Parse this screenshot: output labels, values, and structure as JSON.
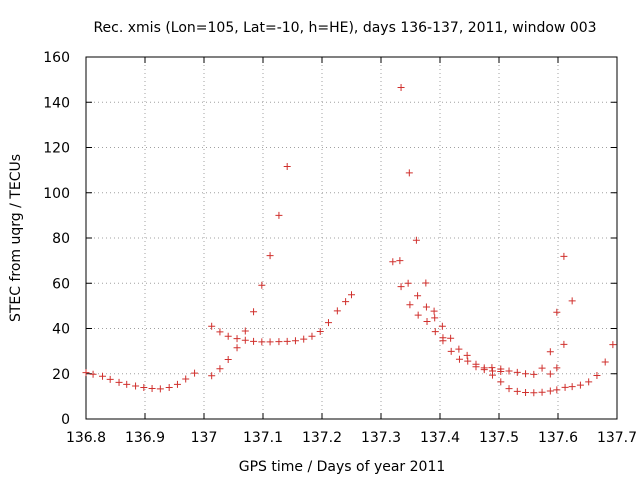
{
  "chart_data": {
    "type": "scatter",
    "title": "Rec. xmis (Lon=105, Lat=-10, h=HE), days 136-137, 2011, window 003",
    "xlabel": "GPS time / Days of year 2011",
    "ylabel": "STEC from uqrg / TECUs",
    "xlim": [
      136.8,
      137.7
    ],
    "ylim": [
      0,
      160
    ],
    "xticks": [
      136.8,
      136.9,
      137,
      137.1,
      137.2,
      137.3,
      137.4,
      137.5,
      137.6,
      137.7
    ],
    "xtick_labels": [
      "136.8",
      "136.9",
      "137",
      "137.1",
      "137.2",
      "137.3",
      "137.4",
      "137.5",
      "137.6",
      "137.7"
    ],
    "yticks": [
      0,
      20,
      40,
      60,
      80,
      100,
      120,
      140,
      160
    ],
    "ytick_labels": [
      "0",
      "20",
      "40",
      "60",
      "80",
      "100",
      "120",
      "140",
      "160"
    ],
    "grid": true,
    "marker": "+",
    "color": "#d0302d",
    "series": [
      {
        "points": [
          [
            136.8,
            20.5
          ],
          [
            136.812,
            19.8
          ],
          [
            136.828,
            18.9
          ],
          [
            136.841,
            17.5
          ],
          [
            136.856,
            16.2
          ],
          [
            136.869,
            15.3
          ],
          [
            136.884,
            14.6
          ],
          [
            136.898,
            13.9
          ],
          [
            136.912,
            13.5
          ],
          [
            136.926,
            13.3
          ],
          [
            136.941,
            13.9
          ],
          [
            136.955,
            15.3
          ],
          [
            136.969,
            17.7
          ],
          [
            136.984,
            20.3
          ],
          [
            137.013,
            19.1
          ],
          [
            137.027,
            22.2
          ],
          [
            137.041,
            26.3
          ],
          [
            137.056,
            31.5
          ],
          [
            137.07,
            38.9
          ],
          [
            137.084,
            47.4
          ],
          [
            137.098,
            59.1
          ],
          [
            137.112,
            72.2
          ],
          [
            137.127,
            90.0
          ],
          [
            137.141,
            111.6
          ],
          [
            137.013,
            41.0
          ],
          [
            137.027,
            38.5
          ],
          [
            137.041,
            36.6
          ],
          [
            137.056,
            35.5
          ],
          [
            137.07,
            34.8
          ],
          [
            137.084,
            34.3
          ],
          [
            137.098,
            34.1
          ],
          [
            137.112,
            34.1
          ],
          [
            137.127,
            34.2
          ],
          [
            137.141,
            34.3
          ],
          [
            137.155,
            34.6
          ],
          [
            137.169,
            35.3
          ],
          [
            137.183,
            36.6
          ],
          [
            137.197,
            38.7
          ],
          [
            137.211,
            42.6
          ],
          [
            137.226,
            47.8
          ],
          [
            137.24,
            51.9
          ],
          [
            137.25,
            54.9
          ],
          [
            137.32,
            69.5
          ],
          [
            137.332,
            70.0
          ],
          [
            137.334,
            146.5
          ],
          [
            137.334,
            58.5
          ],
          [
            137.346,
            60.0
          ],
          [
            137.348,
            108.8
          ],
          [
            137.349,
            50.5
          ],
          [
            137.36,
            79.0
          ],
          [
            137.362,
            54.5
          ],
          [
            137.363,
            45.9
          ],
          [
            137.376,
            60.1
          ],
          [
            137.377,
            49.5
          ],
          [
            137.378,
            43.1
          ],
          [
            137.39,
            47.7
          ],
          [
            137.391,
            44.7
          ],
          [
            137.392,
            38.6
          ],
          [
            137.404,
            41.0
          ],
          [
            137.405,
            35.9
          ],
          [
            137.405,
            34.6
          ],
          [
            137.418,
            35.7
          ],
          [
            137.419,
            29.9
          ],
          [
            137.432,
            30.9
          ],
          [
            137.433,
            26.4
          ],
          [
            137.446,
            28.1
          ],
          [
            137.447,
            25.6
          ],
          [
            137.461,
            24.2
          ],
          [
            137.461,
            23.1
          ],
          [
            137.475,
            22.6
          ],
          [
            137.475,
            21.8
          ],
          [
            137.488,
            22.7
          ],
          [
            137.489,
            21.2
          ],
          [
            137.489,
            19.4
          ],
          [
            137.503,
            22.1
          ],
          [
            137.503,
            21.0
          ],
          [
            137.503,
            16.4
          ],
          [
            137.517,
            21.2
          ],
          [
            137.517,
            13.4
          ],
          [
            137.531,
            20.6
          ],
          [
            137.531,
            12.2
          ],
          [
            137.545,
            20.0
          ],
          [
            137.545,
            11.7
          ],
          [
            137.559,
            19.7
          ],
          [
            137.559,
            11.6
          ],
          [
            137.573,
            22.5
          ],
          [
            137.573,
            11.8
          ],
          [
            137.587,
            29.7
          ],
          [
            137.587,
            19.9
          ],
          [
            137.587,
            12.4
          ],
          [
            137.598,
            47.2
          ],
          [
            137.598,
            22.6
          ],
          [
            137.598,
            12.9
          ],
          [
            137.61,
            71.9
          ],
          [
            137.61,
            33.0
          ],
          [
            137.612,
            14.0
          ],
          [
            137.624,
            52.2
          ],
          [
            137.624,
            14.3
          ],
          [
            137.638,
            15.0
          ],
          [
            137.652,
            16.4
          ],
          [
            137.666,
            19.2
          ],
          [
            137.68,
            25.2
          ],
          [
            137.693,
            32.9
          ]
        ]
      }
    ]
  }
}
